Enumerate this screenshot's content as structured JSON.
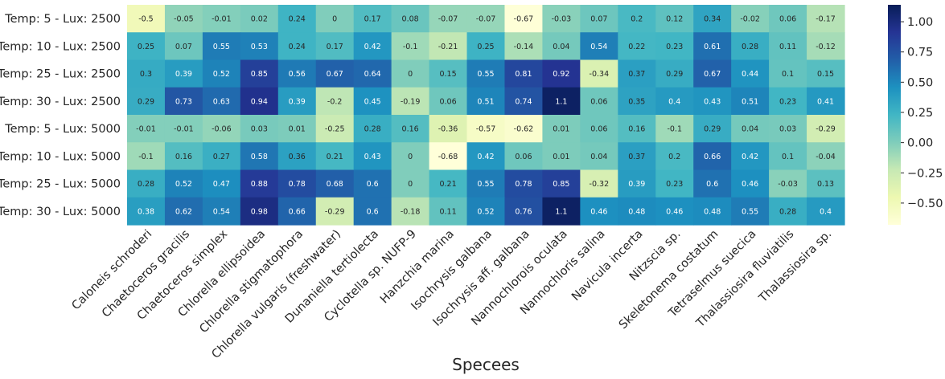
{
  "chart_data": {
    "type": "heatmap",
    "xlabel": "Specees",
    "ylabel": "",
    "columns": [
      "Caloneis schroderi",
      "Chaetoceros gracilis",
      "Chaetoceros simplex",
      "Chlorella ellipsoidea",
      "Chlorella stigmatophora",
      "Chlorella vulgaris  (freshwater)",
      "Dunaniella tertiolecta",
      "Cyclotella sp. NUFP-9",
      "Hanzchia marina",
      "Isochrysis galbana",
      "Isochrysis aff. galbana",
      "Nannochlorois  oculata",
      "Nannochloris salina",
      "Navicula incerta",
      "Nitzscia sp.",
      "Skeletonema costatum",
      "Tetraselmus suecica",
      "Thalassiosira fluviatilis",
      "Thalassiosira sp."
    ],
    "rows": [
      "Temp: 5 - Lux: 2500",
      "Temp: 10 - Lux: 2500",
      "Temp: 25 - Lux: 2500",
      "Temp: 30 - Lux: 2500",
      "Temp: 5 - Lux: 5000",
      "Temp: 10 - Lux: 5000",
      "Temp: 25 - Lux: 5000",
      "Temp: 30 - Lux: 5000"
    ],
    "values": [
      [
        -0.5,
        -0.05,
        -0.01,
        0.02,
        0.24,
        0,
        0.17,
        0.08,
        -0.07,
        -0.07,
        -0.67,
        -0.03,
        0.07,
        0.2,
        0.12,
        0.34,
        -0.02,
        0.06,
        -0.17
      ],
      [
        0.25,
        0.07,
        0.55,
        0.53,
        0.24,
        0.17,
        0.42,
        -0.1,
        -0.21,
        0.25,
        -0.14,
        0.04,
        0.54,
        0.22,
        0.23,
        0.61,
        0.28,
        0.11,
        -0.12
      ],
      [
        0.3,
        0.39,
        0.52,
        0.85,
        0.56,
        0.67,
        0.64,
        0,
        0.15,
        0.55,
        0.81,
        0.92,
        -0.34,
        0.37,
        0.29,
        0.67,
        0.44,
        0.1,
        0.15
      ],
      [
        0.29,
        0.73,
        0.63,
        0.94,
        0.39,
        -0.2,
        0.45,
        -0.19,
        0.06,
        0.51,
        0.74,
        1.1,
        0.06,
        0.35,
        0.4,
        0.43,
        0.51,
        0.23,
        0.41
      ],
      [
        -0.01,
        -0.01,
        -0.06,
        0.03,
        0.01,
        -0.25,
        0.28,
        0.16,
        -0.36,
        -0.57,
        -0.62,
        0.01,
        0.06,
        0.16,
        -0.1,
        0.29,
        0.04,
        0.03,
        -0.29
      ],
      [
        -0.1,
        0.16,
        0.27,
        0.58,
        0.36,
        0.21,
        0.43,
        0,
        -0.68,
        0.42,
        0.06,
        0.01,
        0.04,
        0.37,
        0.2,
        0.66,
        0.42,
        0.1,
        -0.04
      ],
      [
        0.28,
        0.52,
        0.47,
        0.88,
        0.78,
        0.68,
        0.6,
        0,
        0.21,
        0.55,
        0.78,
        0.85,
        -0.32,
        0.39,
        0.23,
        0.6,
        0.46,
        -0.03,
        0.13
      ],
      [
        0.38,
        0.62,
        0.54,
        0.98,
        0.66,
        -0.29,
        0.6,
        -0.18,
        0.11,
        0.52,
        0.76,
        1.1,
        0.46,
        0.48,
        0.46,
        0.48,
        0.55,
        0.28,
        0.4
      ]
    ],
    "colormap": "YlGnBu",
    "vmin": -0.68,
    "vmax": 1.14,
    "colorbar_ticks": [
      "1.00",
      "0.75",
      "0.50",
      "0.25",
      "0.00",
      "−0.25",
      "−0.50"
    ],
    "colorbar_tick_values": [
      1.0,
      0.75,
      0.5,
      0.25,
      0.0,
      -0.25,
      -0.5
    ],
    "legend": "right"
  }
}
